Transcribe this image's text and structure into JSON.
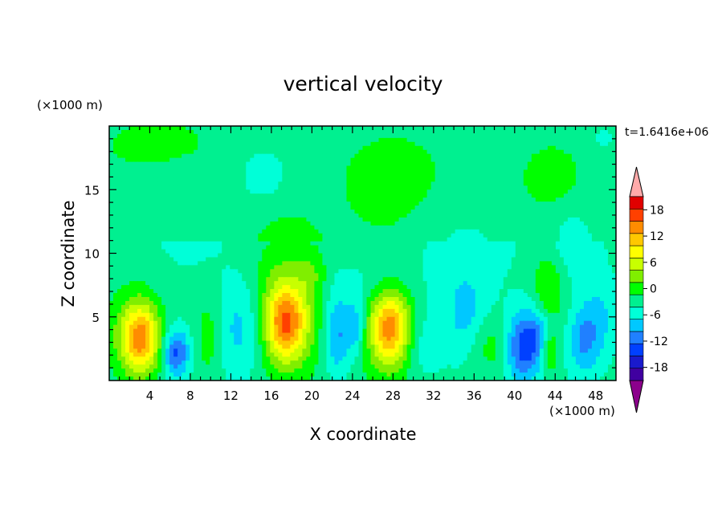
{
  "chart_data": {
    "type": "heatmap",
    "title": "vertical velocity",
    "xlabel": "X coordinate",
    "ylabel": "Z coordinate",
    "x_unit": "(×1000 m)",
    "y_unit": "(×1000 m)",
    "time_label": "t=1.6416e+06",
    "xlim": [
      0,
      50
    ],
    "ylim": [
      0,
      20
    ],
    "x_ticks": [
      4,
      8,
      12,
      16,
      20,
      24,
      28,
      32,
      36,
      40,
      44,
      48
    ],
    "y_ticks": [
      5,
      10,
      15
    ],
    "colorbar": {
      "levels": [
        -21,
        -18,
        -15,
        -12,
        -9,
        -6,
        -3,
        0,
        3,
        6,
        9,
        12,
        15,
        18,
        21
      ],
      "tick_labels": [
        18,
        12,
        6,
        0,
        -6,
        -12,
        -18
      ],
      "colors": [
        "#8c008c",
        "#4000a0",
        "#1a1acc",
        "#0040ff",
        "#2080ff",
        "#00c8ff",
        "#00ffd8",
        "#00f090",
        "#00ff00",
        "#80ee00",
        "#c8ff00",
        "#ffff00",
        "#ffc800",
        "#ff8c00",
        "#ff4000",
        "#e00000",
        "#ffaaaa"
      ]
    },
    "features": [
      {
        "x": 3.2,
        "z": 3.3,
        "amp": 15,
        "sx": 1.3,
        "sz": 1.9
      },
      {
        "x": 2.2,
        "z": 3.6,
        "amp": 5,
        "sx": 1.8,
        "sz": 2.6
      },
      {
        "x": 6.6,
        "z": 2.2,
        "amp": -11,
        "sx": 0.9,
        "sz": 1.3
      },
      {
        "x": 9.8,
        "z": 3.5,
        "amp": 4,
        "sx": 0.9,
        "sz": 2.4
      },
      {
        "x": 13.2,
        "z": 4.2,
        "amp": -6,
        "sx": 1.8,
        "sz": 2.8
      },
      {
        "x": 17.4,
        "z": 4.5,
        "amp": 15,
        "sx": 1.4,
        "sz": 2.0
      },
      {
        "x": 17.4,
        "z": 5.5,
        "amp": 7,
        "sx": 2.6,
        "sz": 3.8
      },
      {
        "x": 22.5,
        "z": 3.6,
        "amp": -8,
        "sx": 0.9,
        "sz": 2.2
      },
      {
        "x": 24.3,
        "z": 4.2,
        "amp": -7,
        "sx": 0.7,
        "sz": 1.5
      },
      {
        "x": 27.7,
        "z": 4.2,
        "amp": 13,
        "sx": 1.3,
        "sz": 2.0
      },
      {
        "x": 27.7,
        "z": 4.0,
        "amp": 6,
        "sx": 2.2,
        "sz": 3.0
      },
      {
        "x": 30.8,
        "z": 3.0,
        "amp": -4,
        "sx": 1.4,
        "sz": 2.0
      },
      {
        "x": 35.2,
        "z": 5.0,
        "amp": -5,
        "sx": 1.6,
        "sz": 2.4
      },
      {
        "x": 37.5,
        "z": 2.8,
        "amp": 4,
        "sx": 1.4,
        "sz": 1.6
      },
      {
        "x": 40.8,
        "z": 2.6,
        "amp": -11,
        "sx": 1.2,
        "sz": 2.0
      },
      {
        "x": 42.4,
        "z": 3.6,
        "amp": -6,
        "sx": 0.9,
        "sz": 1.6
      },
      {
        "x": 43.4,
        "z": 2.2,
        "amp": 7,
        "sx": 0.6,
        "sz": 1.1
      },
      {
        "x": 43.3,
        "z": 7.3,
        "amp": 6,
        "sx": 1.1,
        "sz": 2.2
      },
      {
        "x": 46.8,
        "z": 3.0,
        "amp": -7,
        "sx": 1.1,
        "sz": 1.9
      },
      {
        "x": 48.5,
        "z": 5.0,
        "amp": -4,
        "sx": 1.3,
        "sz": 2.2
      },
      {
        "x": 15.3,
        "z": 16.2,
        "amp": -4,
        "sx": 1.6,
        "sz": 1.5
      },
      {
        "x": 43.7,
        "z": 15.8,
        "amp": 3.5,
        "sx": 1.8,
        "sz": 1.6
      },
      {
        "x": 45.5,
        "z": 11.0,
        "amp": -3,
        "sx": 2.2,
        "sz": 2.5
      },
      {
        "x": 8.0,
        "z": 12.5,
        "amp": -2,
        "sx": 3.0,
        "sz": 3.0
      },
      {
        "x": 35.0,
        "z": 10.5,
        "amp": -2.5,
        "sx": 3.5,
        "sz": 2.5
      },
      {
        "x": 28.0,
        "z": 15.5,
        "amp": 2,
        "sx": 4.0,
        "sz": 3.0
      },
      {
        "x": 5.0,
        "z": 18.5,
        "amp": 2,
        "sx": 4.0,
        "sz": 1.5
      },
      {
        "x": 48.8,
        "z": 19.0,
        "amp": -2.5,
        "sx": 1.0,
        "sz": 0.9
      },
      {
        "x": 20.0,
        "z": 8.3,
        "amp": 3,
        "sx": 1.0,
        "sz": 1.2
      },
      {
        "x": 26.0,
        "z": 7.6,
        "amp": -2.5,
        "sx": 3.5,
        "sz": 1.5
      }
    ],
    "background": [
      {
        "zmin": 0,
        "zmax": 11,
        "value": -2
      },
      {
        "zmin": 11,
        "zmax": 20,
        "value": -1
      }
    ]
  }
}
